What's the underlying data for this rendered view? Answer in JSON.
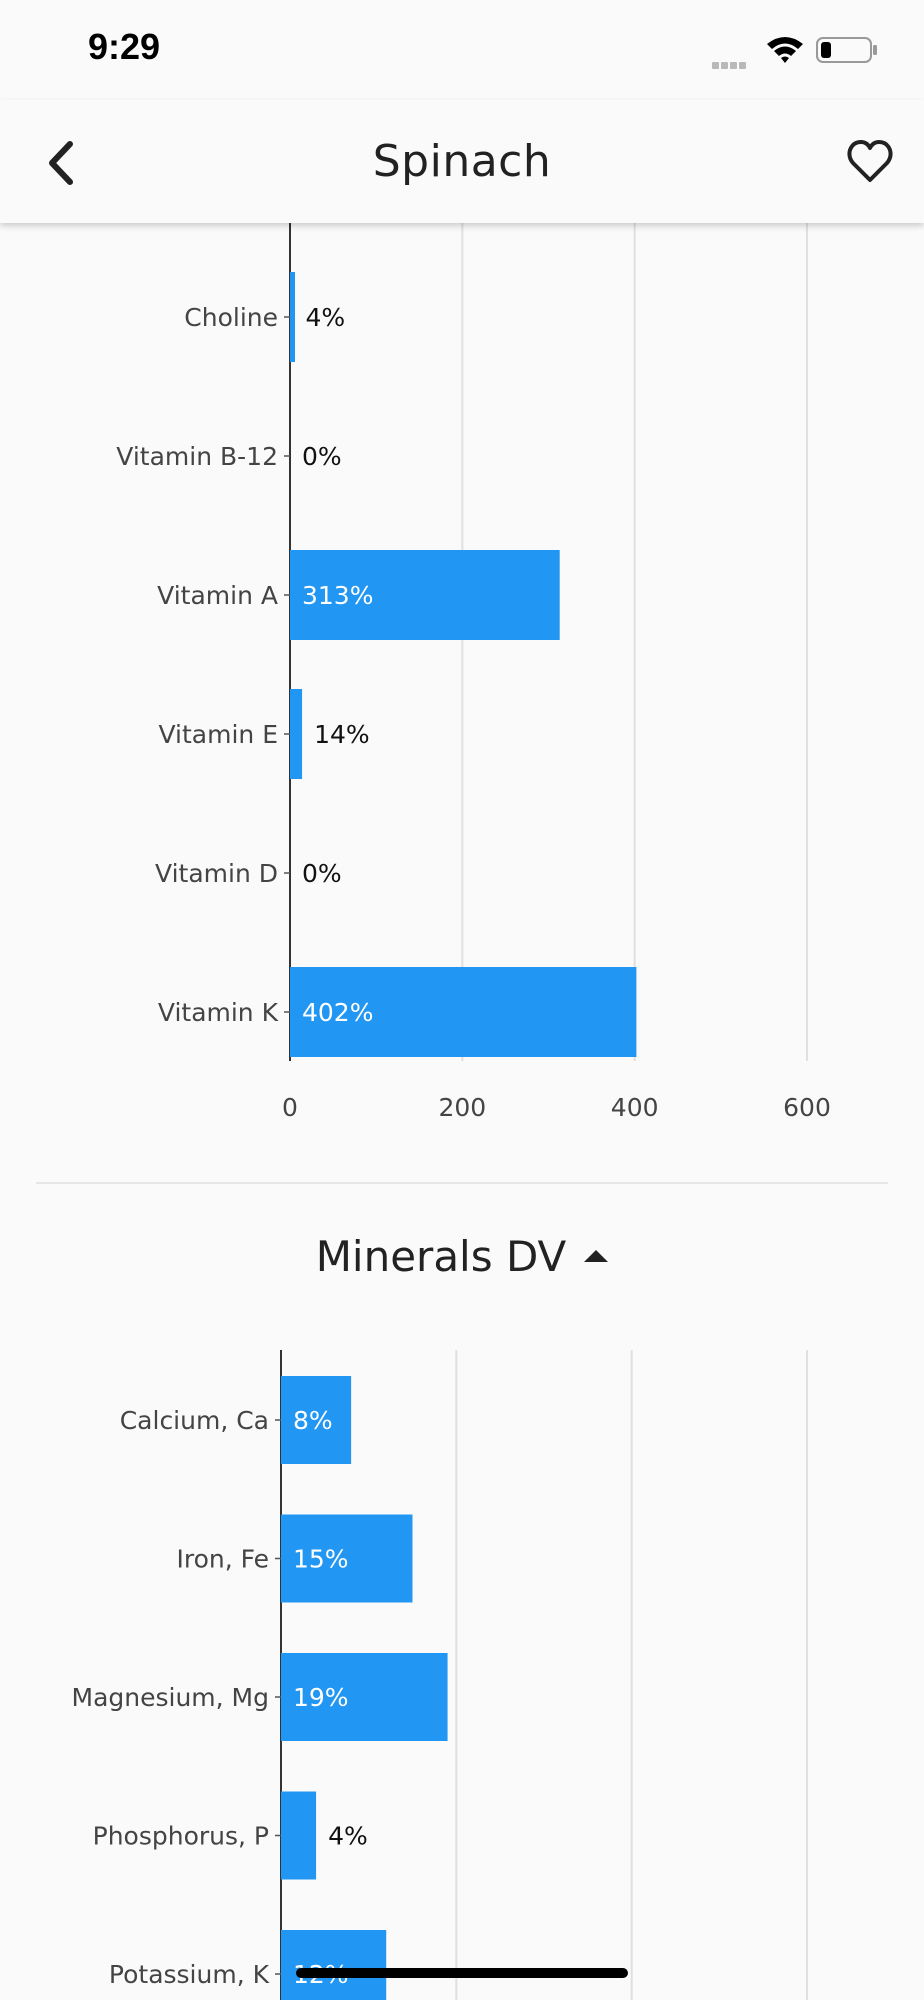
{
  "status_bar": {
    "time": "9:29"
  },
  "header": {
    "title": "Spinach"
  },
  "sections": {
    "minerals_title": "Minerals DV"
  },
  "colors": {
    "bar": "#2196f3",
    "axis": "#333333",
    "grid": "#e0e0e0"
  },
  "icons": {
    "back": "chevron-left-icon",
    "favorite": "heart-outline-icon",
    "sort": "triangle-up-icon"
  },
  "chart_data": [
    {
      "type": "bar",
      "orientation": "horizontal",
      "categories": [
        "Choline",
        "Vitamin B-12",
        "Vitamin A",
        "Vitamin E",
        "Vitamin D",
        "Vitamin K"
      ],
      "values": [
        4,
        0,
        313,
        14,
        0,
        402
      ],
      "value_labels": [
        "4%",
        "0%",
        "313%",
        "14%",
        "0%",
        "402%"
      ],
      "xticks": [
        "0",
        "200",
        "400",
        "600"
      ],
      "xlim": [
        0,
        600
      ],
      "grid": true
    },
    {
      "type": "bar",
      "orientation": "horizontal",
      "title": "Minerals DV",
      "categories": [
        "Calcium, Ca",
        "Iron, Fe",
        "Magnesium, Mg",
        "Phosphorus, P",
        "Potassium, K"
      ],
      "values": [
        8,
        15,
        19,
        4,
        12
      ],
      "value_labels": [
        "8%",
        "15%",
        "19%",
        "4%",
        "12%"
      ],
      "xlim": [
        0,
        60
      ],
      "grid": true
    }
  ]
}
